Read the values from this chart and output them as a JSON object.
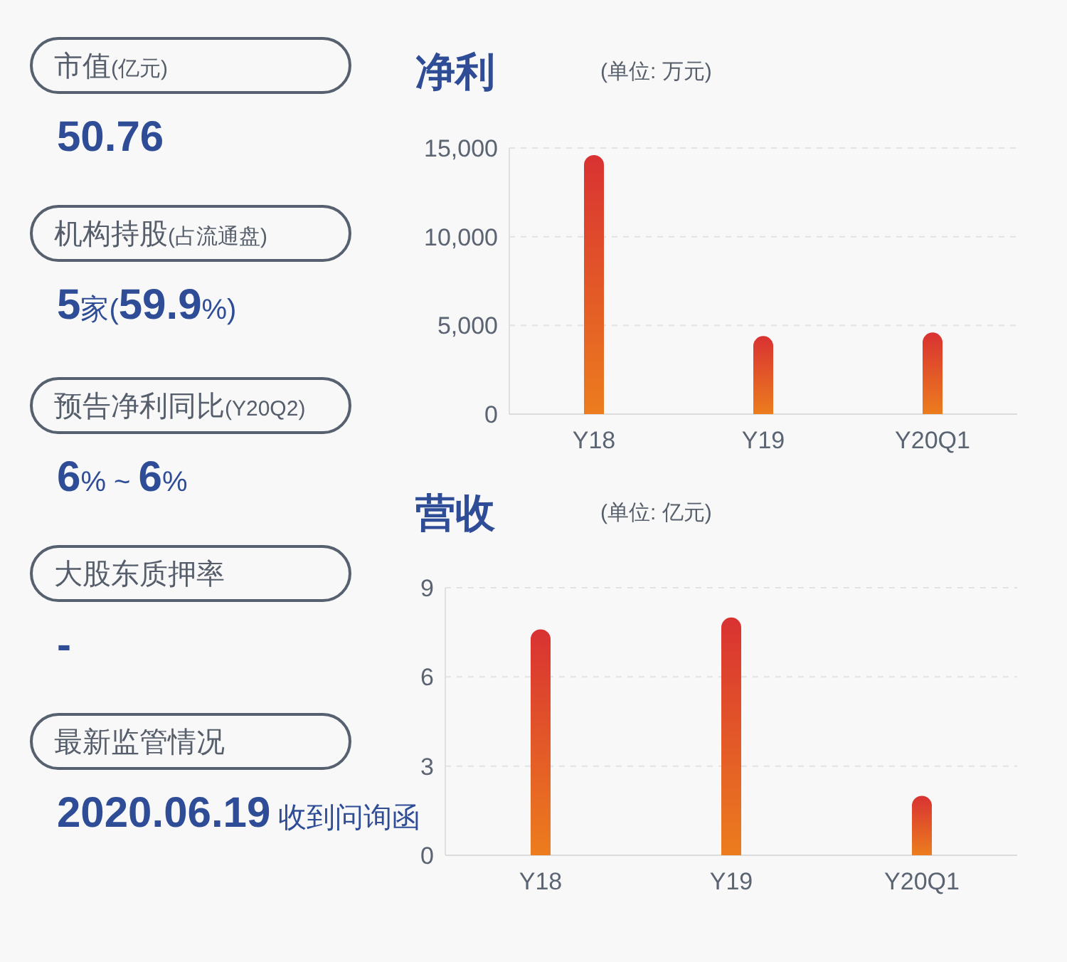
{
  "chart_data": [
    {
      "type": "other",
      "annotations": [
        "市值(亿元)",
        "50.76",
        "机构持股(占流通盘)",
        "5家(59.9%)",
        "预告净利同比(Y20Q2)",
        "6% ~ 6%",
        "大股东质押率",
        "-",
        "最新监管情况",
        "2020.06.19 收到问询函"
      ]
    },
    {
      "type": "bar",
      "title": "净利",
      "subtitle": "(单位: 万元)",
      "categories": [
        "Y18",
        "Y19",
        "Y20Q1"
      ],
      "values": [
        14600,
        4400,
        4600
      ],
      "color": "#d93232",
      "ylim": [
        0,
        15000
      ],
      "yticks": [
        0,
        {
          "value": 5000,
          "label": "5,000"
        },
        {
          "value": 10000,
          "label": "10,000"
        },
        {
          "value": 15000,
          "label": "15,000"
        }
      ],
      "grid": "y"
    },
    {
      "type": "bar",
      "title": "营收",
      "subtitle": "(单位: 亿元)",
      "categories": [
        "Y18",
        "Y19",
        "Y20Q1"
      ],
      "values": [
        7.6,
        8.0,
        2.0
      ],
      "color": "#d93232",
      "ylim": [
        0,
        9
      ],
      "yticks": [
        0,
        3,
        6,
        9
      ],
      "grid": "y"
    }
  ]
}
